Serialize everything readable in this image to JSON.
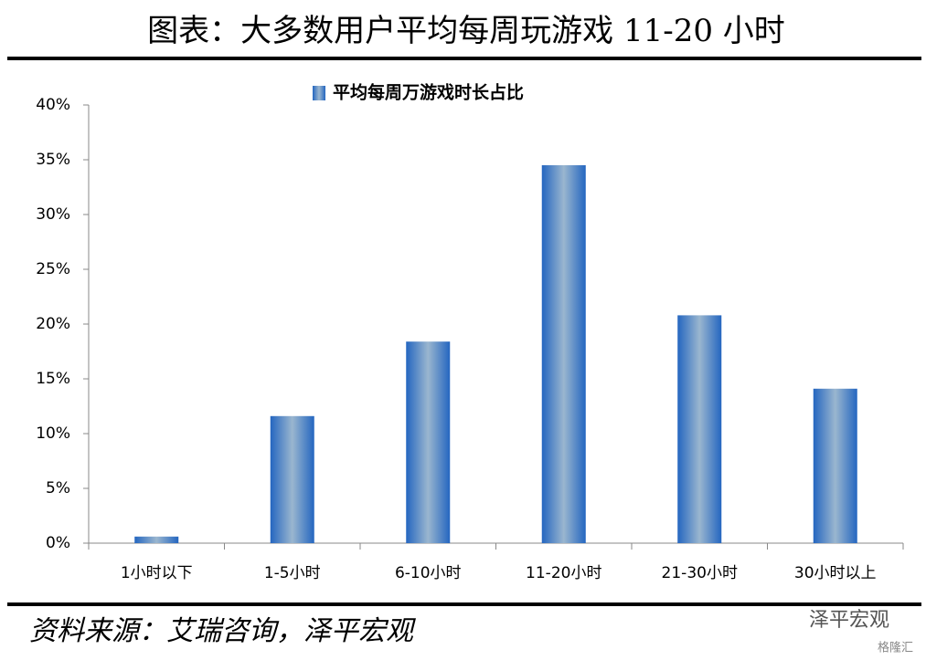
{
  "chart_data": {
    "type": "bar",
    "title": "图表：大多数用户平均每周玩游戏 11-20 小时",
    "categories": [
      "1小时以下",
      "1-5小时",
      "6-10小时",
      "11-20小时",
      "21-30小时",
      "30小时以上"
    ],
    "series": [
      {
        "name": "平均每周万游戏时长占比",
        "color": "#2e6bbf",
        "values": [
          0.6,
          11.6,
          18.4,
          34.5,
          20.8,
          14.1
        ]
      }
    ],
    "ylim": [
      0,
      40
    ],
    "yticks": [
      {
        "value": 0,
        "label": "0%"
      },
      {
        "value": 5,
        "label": "5%"
      },
      {
        "value": 10,
        "label": "10%"
      },
      {
        "value": 15,
        "label": "15%"
      },
      {
        "value": 20,
        "label": "20%"
      },
      {
        "value": 25,
        "label": "25%"
      },
      {
        "value": 30,
        "label": "30%"
      },
      {
        "value": 35,
        "label": "35%"
      },
      {
        "value": 40,
        "label": "40%"
      }
    ],
    "grid": false
  },
  "footer": {
    "source": "资料来源：艾瑞咨询，泽平宏观",
    "watermark": "泽平宏观",
    "logo": "格隆汇"
  }
}
